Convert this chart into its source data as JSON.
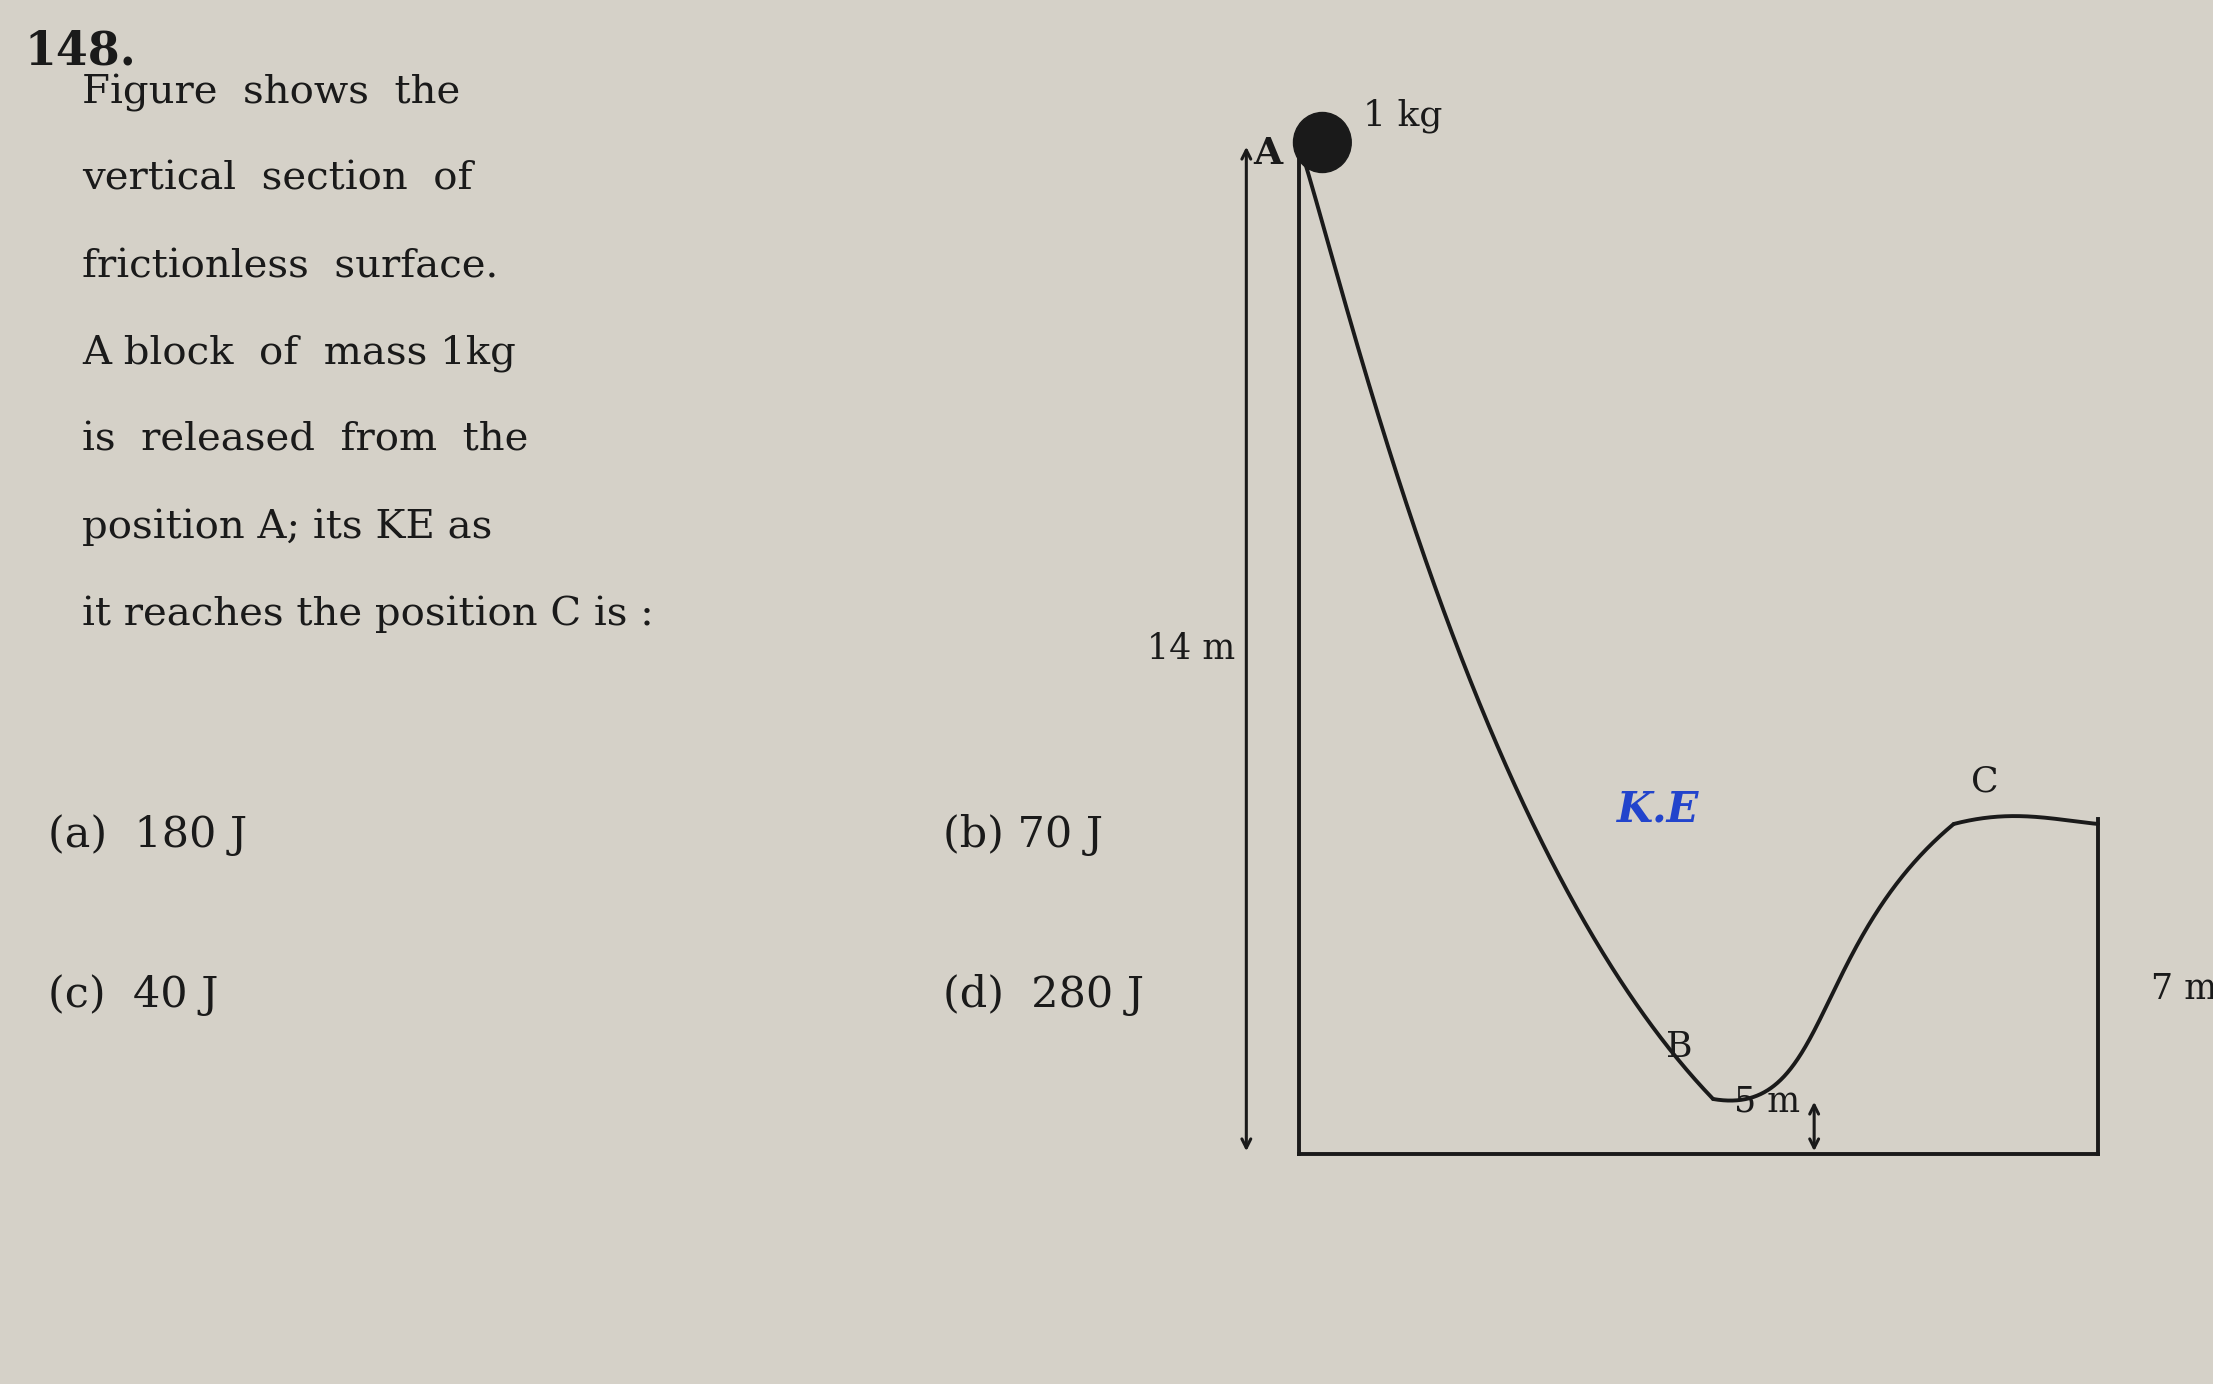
{
  "bg_color": "#d5d1c8",
  "question_number": "148.",
  "question_text_lines": [
    "Figure  shows  the",
    "vertical  section  of",
    "frictionless  surface.",
    "A block  of  mass 1kg",
    "is  released  from  the",
    "position A; its KE as",
    "it reaches the position C is :"
  ],
  "options_left": [
    "(a)  180 J",
    "(c)  40 J"
  ],
  "options_right": [
    "(b) 70 J",
    "(d)  280 J"
  ],
  "annotation": "K.E",
  "curve_color": "#1a1a1a",
  "arrow_color": "#1a1a1a",
  "text_color": "#1a1a1a",
  "ball_color": "#1a1a1a",
  "blue_color": "#2244cc",
  "diagram": {
    "A_label": "A",
    "B_label": "B",
    "C_label": "C",
    "mass_label": "1 kg",
    "height_14m": "14 m",
    "height_5m": "5 m",
    "height_7m": "7 m"
  }
}
